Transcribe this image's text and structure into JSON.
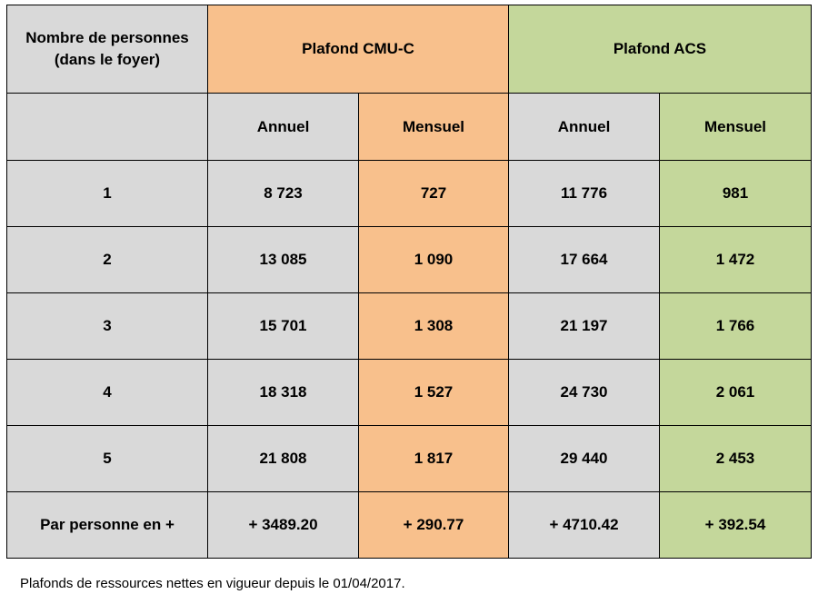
{
  "table": {
    "header": {
      "col0_line1": "Nombre de personnes",
      "col0_line2": "(dans le foyer)",
      "group_cmuc": "Plafond CMU-C",
      "group_acs": "Plafond ACS"
    },
    "subheader": {
      "cmuc_annuel": "Annuel",
      "cmuc_mensuel": "Mensuel",
      "acs_annuel": "Annuel",
      "acs_mensuel": "Mensuel"
    },
    "rows": [
      {
        "persons": "1",
        "cmuc_annuel": "8 723",
        "cmuc_mensuel": "727",
        "acs_annuel": "11 776",
        "acs_mensuel": "981"
      },
      {
        "persons": "2",
        "cmuc_annuel": "13 085",
        "cmuc_mensuel": "1 090",
        "acs_annuel": "17 664",
        "acs_mensuel": "1 472"
      },
      {
        "persons": "3",
        "cmuc_annuel": "15 701",
        "cmuc_mensuel": "1 308",
        "acs_annuel": "21 197",
        "acs_mensuel": "1 766"
      },
      {
        "persons": "4",
        "cmuc_annuel": "18 318",
        "cmuc_mensuel": "1 527",
        "acs_annuel": "24 730",
        "acs_mensuel": "2 061"
      },
      {
        "persons": "5",
        "cmuc_annuel": "21 808",
        "cmuc_mensuel": "1 817",
        "acs_annuel": "29 440",
        "acs_mensuel": "2 453"
      },
      {
        "persons": "Par personne en +",
        "cmuc_annuel": "+ 3489.20",
        "cmuc_mensuel": "+ 290.77",
        "acs_annuel": "+ 4710.42",
        "acs_mensuel": "+ 392.54"
      }
    ]
  },
  "caption": "Plafonds de ressources nettes en vigueur depuis le 01/04/2017.",
  "colors": {
    "grey": "#d9d9d9",
    "orange": "#f8c08c",
    "green": "#c4d79b",
    "border": "#000000"
  }
}
